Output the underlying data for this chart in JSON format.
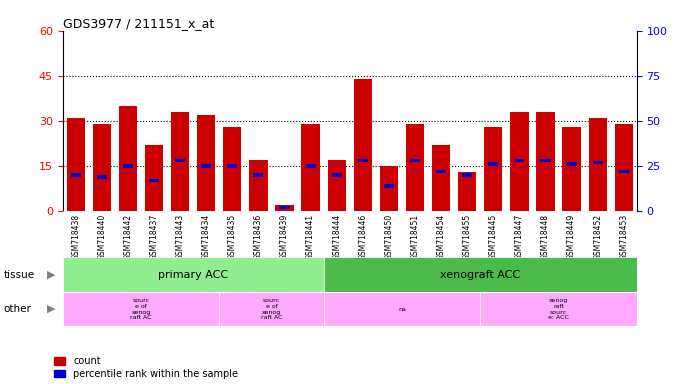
{
  "title": "GDS3977 / 211151_x_at",
  "samples": [
    "GSM718438",
    "GSM718440",
    "GSM718442",
    "GSM718437",
    "GSM718443",
    "GSM718434",
    "GSM718435",
    "GSM718436",
    "GSM718439",
    "GSM718441",
    "GSM718444",
    "GSM718446",
    "GSM718450",
    "GSM718451",
    "GSM718454",
    "GSM718455",
    "GSM718445",
    "GSM718447",
    "GSM718448",
    "GSM718449",
    "GSM718452",
    "GSM718453"
  ],
  "counts": [
    31,
    29,
    35,
    22,
    33,
    32,
    28,
    17,
    2,
    29,
    17,
    44,
    15,
    29,
    22,
    13,
    28,
    33,
    33,
    28,
    31,
    29
  ],
  "percentile_ranks": [
    20,
    19,
    25,
    17,
    28,
    25,
    25,
    20,
    2,
    25,
    20,
    28,
    14,
    28,
    22,
    20,
    26,
    28,
    28,
    26,
    27,
    22
  ],
  "tissue_groups": [
    {
      "label": "primary ACC",
      "start": 0,
      "end": 10,
      "color": "#90ee90"
    },
    {
      "label": "xenograft ACC",
      "start": 10,
      "end": 22,
      "color": "#4cbb4c"
    }
  ],
  "other_data": [
    {
      "start": 0,
      "end": 6,
      "color": "#ffaaff",
      "label": "sourc\ne of\nxenog\nraft AC"
    },
    {
      "start": 6,
      "end": 10,
      "color": "#ffaaff",
      "label": "sourc\ne of\nxenog\nraft AC"
    },
    {
      "start": 10,
      "end": 16,
      "color": "#ffaaff",
      "label": "na"
    },
    {
      "start": 16,
      "end": 22,
      "color": "#ffaaff",
      "label": "xenog\nraft\nsourc\ne: ACC"
    }
  ],
  "left_ylim": [
    0,
    60
  ],
  "right_ylim": [
    0,
    100
  ],
  "left_yticks": [
    0,
    15,
    30,
    45,
    60
  ],
  "right_yticks": [
    0,
    25,
    50,
    75,
    100
  ],
  "bar_color": "#cc0000",
  "percentile_color": "#0000cc",
  "tissue_label": "tissue",
  "other_label": "other",
  "legend_count": "count",
  "legend_percentile": "percentile rank within the sample",
  "xticklabel_bg": "#c8c8c8"
}
